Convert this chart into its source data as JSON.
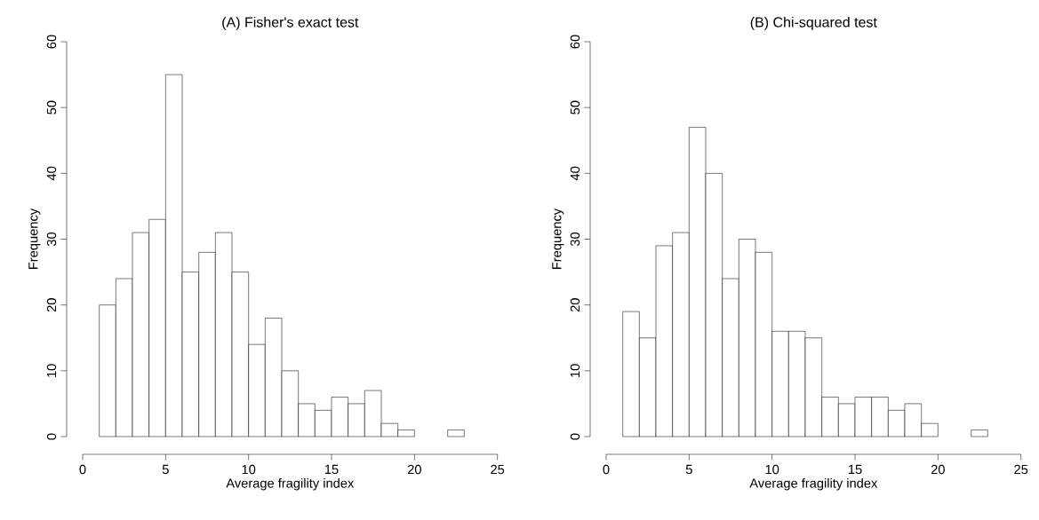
{
  "chart_data": [
    {
      "type": "histogram",
      "title": "(A) Fisher's exact test",
      "xlabel": "Average fragility index",
      "ylabel": "Frequency",
      "color": "#ffffff",
      "bins": [
        1,
        2,
        3,
        4,
        5,
        6,
        7,
        8,
        9,
        10,
        11,
        12,
        13,
        14,
        15,
        16,
        17,
        18,
        19,
        20,
        21,
        22,
        23
      ],
      "values": [
        20,
        24,
        31,
        33,
        55,
        25,
        28,
        31,
        25,
        14,
        18,
        10,
        5,
        4,
        6,
        5,
        7,
        2,
        1,
        0,
        0,
        1
      ],
      "xlim": [
        0,
        25
      ],
      "ylim": [
        0,
        60
      ],
      "xticks": [
        0,
        5,
        10,
        15,
        20,
        25
      ],
      "yticks": [
        0,
        10,
        20,
        30,
        40,
        50,
        60
      ]
    },
    {
      "type": "histogram",
      "title": "(B) Chi-squared test",
      "xlabel": "Average fragility index",
      "ylabel": "Frequency",
      "color": "#ffffff",
      "bins": [
        1,
        2,
        3,
        4,
        5,
        6,
        7,
        8,
        9,
        10,
        11,
        12,
        13,
        14,
        15,
        16,
        17,
        18,
        19,
        20,
        21,
        22,
        23
      ],
      "values": [
        19,
        15,
        29,
        31,
        47,
        40,
        24,
        30,
        28,
        16,
        16,
        15,
        6,
        5,
        6,
        6,
        4,
        5,
        2,
        0,
        0,
        1
      ],
      "xlim": [
        0,
        25
      ],
      "ylim": [
        0,
        60
      ],
      "xticks": [
        0,
        5,
        10,
        15,
        20,
        25
      ],
      "yticks": [
        0,
        10,
        20,
        30,
        40,
        50,
        60
      ]
    }
  ]
}
